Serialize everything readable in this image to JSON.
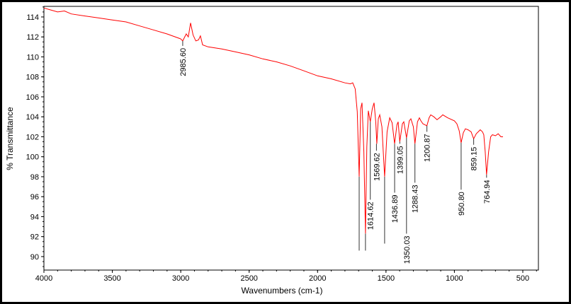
{
  "chart_data": {
    "type": "line",
    "title": "",
    "xlabel": "Wavenumbers (cm-1)",
    "ylabel": "% Transmittance",
    "xlim": [
      4000,
      386
    ],
    "ylim": [
      88.65,
      115.06
    ],
    "x_ticks": [
      4000,
      3500,
      3000,
      2500,
      2000,
      1500,
      1000,
      500
    ],
    "y_ticks": [
      90,
      92,
      94,
      96,
      98,
      100,
      102,
      104,
      106,
      108,
      110,
      112,
      114
    ],
    "grid": false,
    "line_color": "#ff0000",
    "series": [
      {
        "name": "spectrum",
        "points": [
          [
            4000,
            114.9
          ],
          [
            3950,
            114.7
          ],
          [
            3900,
            114.5
          ],
          [
            3850,
            114.6
          ],
          [
            3800,
            114.3
          ],
          [
            3700,
            114.1
          ],
          [
            3600,
            113.9
          ],
          [
            3500,
            113.7
          ],
          [
            3400,
            113.5
          ],
          [
            3300,
            113.1
          ],
          [
            3200,
            112.7
          ],
          [
            3100,
            112.3
          ],
          [
            3000,
            111.8
          ],
          [
            2985.6,
            111.6
          ],
          [
            2960,
            112.3
          ],
          [
            2945,
            112.0
          ],
          [
            2928,
            113.4
          ],
          [
            2910,
            112.2
          ],
          [
            2890,
            111.6
          ],
          [
            2870,
            111.7
          ],
          [
            2856,
            112.1
          ],
          [
            2840,
            111.2
          ],
          [
            2800,
            111.0
          ],
          [
            2700,
            110.8
          ],
          [
            2600,
            110.5
          ],
          [
            2500,
            110.2
          ],
          [
            2400,
            109.8
          ],
          [
            2300,
            109.5
          ],
          [
            2200,
            109.1
          ],
          [
            2100,
            108.6
          ],
          [
            2000,
            108.1
          ],
          [
            1900,
            107.8
          ],
          [
            1800,
            107.4
          ],
          [
            1760,
            107.3
          ],
          [
            1743,
            107.4
          ],
          [
            1725,
            106.8
          ],
          [
            1710,
            104.5
          ],
          [
            1696,
            98.0
          ],
          [
            1685,
            104.8
          ],
          [
            1675,
            105.4
          ],
          [
            1662,
            100.5
          ],
          [
            1650,
            92.3
          ],
          [
            1640,
            101.0
          ],
          [
            1629,
            104.6
          ],
          [
            1614.62,
            103.5
          ],
          [
            1600,
            104.8
          ],
          [
            1587,
            105.4
          ],
          [
            1575,
            103.5
          ],
          [
            1567,
            101.3
          ],
          [
            1556,
            103.8
          ],
          [
            1546,
            104.2
          ],
          [
            1530,
            103.0
          ],
          [
            1510,
            98.0
          ],
          [
            1492,
            102.5
          ],
          [
            1473,
            103.9
          ],
          [
            1455,
            103.4
          ],
          [
            1436.89,
            101.3
          ],
          [
            1420,
            103.2
          ],
          [
            1411,
            103.5
          ],
          [
            1399.05,
            101.5
          ],
          [
            1380,
            103.3
          ],
          [
            1370,
            103.5
          ],
          [
            1350.03,
            101.9
          ],
          [
            1330,
            103.6
          ],
          [
            1318,
            103.8
          ],
          [
            1300,
            103.0
          ],
          [
            1288.43,
            101.3
          ],
          [
            1270,
            103.5
          ],
          [
            1256,
            103.9
          ],
          [
            1245,
            103.6
          ],
          [
            1230,
            103.3
          ],
          [
            1200.87,
            103.1
          ],
          [
            1185,
            103.9
          ],
          [
            1173,
            104.2
          ],
          [
            1150,
            104.0
          ],
          [
            1127,
            103.7
          ],
          [
            1100,
            104.0
          ],
          [
            1085,
            104.2
          ],
          [
            1050,
            103.9
          ],
          [
            1000,
            103.6
          ],
          [
            982,
            103.3
          ],
          [
            965,
            102.6
          ],
          [
            950.8,
            101.4
          ],
          [
            935,
            102.4
          ],
          [
            920,
            102.8
          ],
          [
            900,
            102.7
          ],
          [
            878,
            102.5
          ],
          [
            859.15,
            101.8
          ],
          [
            840,
            102.3
          ],
          [
            811,
            102.7
          ],
          [
            795,
            102.5
          ],
          [
            785,
            102.2
          ],
          [
            775,
            100.5
          ],
          [
            764.94,
            98.2
          ],
          [
            750,
            100.5
          ],
          [
            735,
            102.0
          ],
          [
            722,
            102.2
          ],
          [
            700,
            102.1
          ],
          [
            680,
            102.3
          ],
          [
            660,
            102.0
          ],
          [
            645,
            102.0
          ]
        ]
      }
    ],
    "peak_labels": [
      {
        "text": "2985.60",
        "wn": 2985.6,
        "peak_T": 111.6,
        "leader_end_T": 111.1
      },
      {
        "text": "1614.62",
        "wn": 1614.62,
        "peak_T": 103.5,
        "leader_end_T": 95.7
      },
      {
        "text": "1569.62",
        "wn": 1569.62,
        "peak_T": 101.3,
        "leader_end_T": 100.6
      },
      {
        "text": "1436.89",
        "wn": 1436.89,
        "peak_T": 101.3,
        "leader_end_T": 96.4
      },
      {
        "text": "1399.05",
        "wn": 1399.05,
        "peak_T": 101.5,
        "leader_end_T": 101.3
      },
      {
        "text": "1350.03",
        "wn": 1350.03,
        "peak_T": 101.9,
        "leader_end_T": 92.3
      },
      {
        "text": "1288.43",
        "wn": 1288.43,
        "peak_T": 101.3,
        "leader_end_T": 97.4
      },
      {
        "text": "1200.87",
        "wn": 1200.87,
        "peak_T": 103.1,
        "leader_end_T": 102.5
      },
      {
        "text": "950.80",
        "wn": 950.8,
        "peak_T": 101.4,
        "leader_end_T": 96.7
      },
      {
        "text": "859.15",
        "wn": 859.15,
        "peak_T": 101.8,
        "leader_end_T": 101.2
      },
      {
        "text": "764.94",
        "wn": 764.94,
        "peak_T": 98.2,
        "leader_end_T": 97.9
      }
    ],
    "unlabeled_leaders": [
      {
        "wn": 1696,
        "peak_T": 98.0,
        "leader_end_T": 90.6
      },
      {
        "wn": 1650,
        "peak_T": 92.3,
        "leader_end_T": 90.6
      },
      {
        "wn": 1510,
        "peak_T": 98.0,
        "leader_end_T": 91.3
      }
    ]
  }
}
